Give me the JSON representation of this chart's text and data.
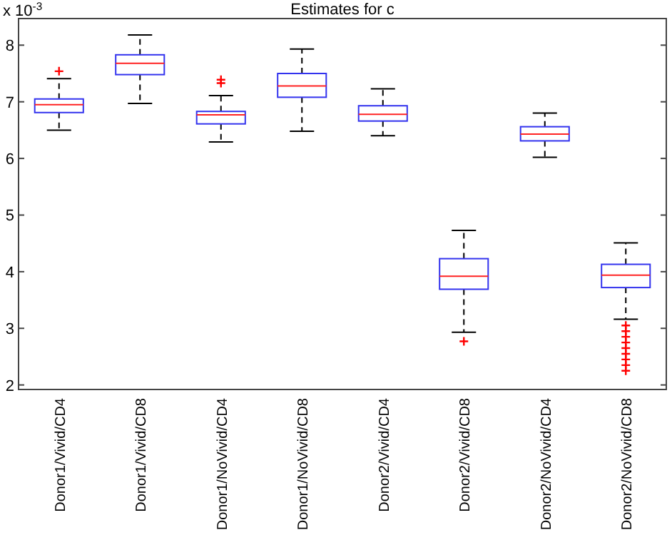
{
  "chart_data": {
    "type": "box",
    "title": "Estimates for c",
    "annotations": [
      "x 10$^{-3}$"
    ],
    "categories": [
      "Donor1/Vivid/CD4",
      "Donor1/Vivid/CD8",
      "Donor1/NoVivid/CD4",
      "Donor1/NoVivid/CD8",
      "Donor2/Vivid/CD4",
      "Donor2/Vivid/CD8",
      "Donor2/NoVivid/CD4",
      "Donor2/NoVivid/CD8"
    ],
    "ylim": [
      1.92,
      8.47
    ],
    "yticks": [
      2,
      3,
      4,
      5,
      6,
      7,
      8
    ],
    "grid": false,
    "color": "#3333ee",
    "boxes": [
      {
        "low": 6.5,
        "q1": 6.81,
        "median": 6.95,
        "q3": 7.05,
        "high": 7.41,
        "outliers": [
          7.54
        ]
      },
      {
        "low": 6.97,
        "q1": 7.48,
        "median": 7.68,
        "q3": 7.83,
        "high": 8.18
      },
      {
        "low": 6.29,
        "q1": 6.61,
        "median": 6.77,
        "q3": 6.83,
        "high": 7.11,
        "outliers": [
          7.33,
          7.39
        ]
      },
      {
        "low": 6.48,
        "q1": 7.08,
        "median": 7.28,
        "q3": 7.5,
        "high": 7.93
      },
      {
        "low": 6.4,
        "q1": 6.66,
        "median": 6.78,
        "q3": 6.93,
        "high": 7.23
      },
      {
        "low": 2.93,
        "q1": 3.69,
        "median": 3.92,
        "q3": 4.23,
        "high": 4.73,
        "outliers": [
          2.77
        ]
      },
      {
        "low": 6.02,
        "q1": 6.31,
        "median": 6.43,
        "q3": 6.56,
        "high": 6.8
      },
      {
        "low": 3.16,
        "q1": 3.72,
        "median": 3.94,
        "q3": 4.13,
        "high": 4.51,
        "outliers": [
          3.05,
          2.95,
          2.85,
          2.75,
          2.65,
          2.55,
          2.45,
          2.35,
          2.25
        ]
      }
    ]
  }
}
